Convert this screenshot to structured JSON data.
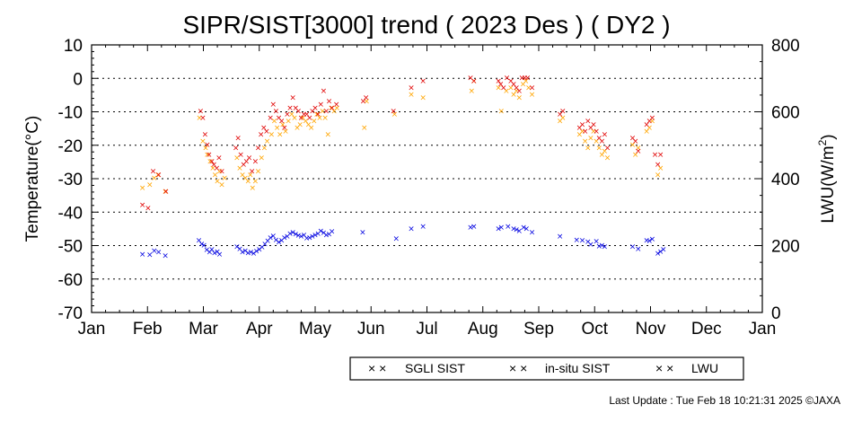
{
  "chart_data": {
    "type": "scatter",
    "title": "SIPR/SIST[3000] trend ( 2023 Des ) ( DY2 )",
    "ylabel": "Temperature(°C)",
    "y2label_base": "LWU(W/m",
    "y2label_sup": "2",
    "y2label_end": ")",
    "ylim": [
      -70,
      10
    ],
    "y2lim": [
      0,
      800
    ],
    "yticks": [
      "10",
      "0",
      "-10",
      "-20",
      "-30",
      "-40",
      "-50",
      "-60",
      "-70"
    ],
    "y2ticks": [
      "800",
      "600",
      "400",
      "200",
      "0"
    ],
    "xticks": [
      "Jan",
      "Feb",
      "Mar",
      "Apr",
      "May",
      "Jun",
      "Jul",
      "Aug",
      "Sep",
      "Oct",
      "Nov",
      "Dec",
      "Jan"
    ],
    "grid": "horizontal-dotted",
    "legend_placement": "bottom-right",
    "x_unit": "month-position (0 = Jan 1, 12 = next Jan 1)",
    "series": [
      {
        "name": "SGLI SIST",
        "axis": "left",
        "color": "#ffa500",
        "marker": "×",
        "points": [
          [
            0.91,
            -33
          ],
          [
            1.04,
            -32
          ],
          [
            1.12,
            -30
          ],
          [
            1.19,
            -29
          ],
          [
            1.32,
            -34
          ],
          [
            1.93,
            -12
          ],
          [
            1.99,
            -19
          ],
          [
            2.04,
            -21
          ],
          [
            2.07,
            -23
          ],
          [
            2.12,
            -25
          ],
          [
            2.17,
            -27
          ],
          [
            2.21,
            -29
          ],
          [
            2.25,
            -31
          ],
          [
            2.29,
            -28
          ],
          [
            2.33,
            -32
          ],
          [
            2.38,
            -30
          ],
          [
            2.6,
            -24
          ],
          [
            2.65,
            -27
          ],
          [
            2.7,
            -29
          ],
          [
            2.75,
            -30
          ],
          [
            2.8,
            -31
          ],
          [
            2.84,
            -29
          ],
          [
            2.88,
            -33
          ],
          [
            2.93,
            -31
          ],
          [
            2.98,
            -28
          ],
          [
            3.04,
            -24
          ],
          [
            3.09,
            -21
          ],
          [
            3.14,
            -19
          ],
          [
            3.22,
            -17
          ],
          [
            3.27,
            -13
          ],
          [
            3.32,
            -15
          ],
          [
            3.37,
            -17
          ],
          [
            3.42,
            -14
          ],
          [
            3.47,
            -16
          ],
          [
            3.52,
            -13
          ],
          [
            3.58,
            -11
          ],
          [
            3.63,
            -12
          ],
          [
            3.68,
            -15
          ],
          [
            3.73,
            -14
          ],
          [
            3.78,
            -12
          ],
          [
            3.83,
            -13
          ],
          [
            3.88,
            -14
          ],
          [
            3.93,
            -15
          ],
          [
            3.98,
            -13
          ],
          [
            4.03,
            -11
          ],
          [
            4.08,
            -12
          ],
          [
            4.13,
            -10
          ],
          [
            4.18,
            -12
          ],
          [
            4.23,
            -17
          ],
          [
            4.29,
            -9
          ],
          [
            4.34,
            -10
          ],
          [
            4.39,
            -9
          ],
          [
            4.88,
            -15
          ],
          [
            4.92,
            -7
          ],
          [
            5.42,
            -11
          ],
          [
            5.72,
            -5
          ],
          [
            5.93,
            -6
          ],
          [
            6.8,
            -4
          ],
          [
            6.84,
            -1
          ],
          [
            7.28,
            -3
          ],
          [
            7.33,
            -10
          ],
          [
            7.42,
            -4
          ],
          [
            7.5,
            -3
          ],
          [
            7.55,
            -5
          ],
          [
            7.6,
            -4
          ],
          [
            7.65,
            -6
          ],
          [
            7.72,
            -2
          ],
          [
            7.77,
            -1
          ],
          [
            7.82,
            -3
          ],
          [
            7.88,
            -5
          ],
          [
            8.38,
            -13
          ],
          [
            8.43,
            -12
          ],
          [
            8.73,
            -17
          ],
          [
            8.78,
            -16
          ],
          [
            8.83,
            -19
          ],
          [
            8.88,
            -21
          ],
          [
            8.93,
            -18
          ],
          [
            8.98,
            -16
          ],
          [
            9.03,
            -19
          ],
          [
            9.08,
            -21
          ],
          [
            9.13,
            -23
          ],
          [
            9.18,
            -22
          ],
          [
            9.23,
            -24
          ],
          [
            9.68,
            -20
          ],
          [
            9.73,
            -23
          ],
          [
            9.78,
            -21
          ],
          [
            9.93,
            -16
          ],
          [
            9.98,
            -15
          ],
          [
            10.03,
            -13
          ],
          [
            10.13,
            -29
          ],
          [
            10.18,
            -27
          ]
        ]
      },
      {
        "name": "in-situ SIST",
        "axis": "left",
        "color": "#e00000",
        "marker": "×",
        "points": [
          [
            0.91,
            -38
          ],
          [
            1.01,
            -39
          ],
          [
            1.1,
            -28
          ],
          [
            1.2,
            -29
          ],
          [
            1.33,
            -34
          ],
          [
            1.95,
            -10
          ],
          [
            1.99,
            -12
          ],
          [
            2.03,
            -17
          ],
          [
            2.07,
            -20
          ],
          [
            2.1,
            -23
          ],
          [
            2.15,
            -25
          ],
          [
            2.19,
            -26
          ],
          [
            2.24,
            -27
          ],
          [
            2.28,
            -24
          ],
          [
            2.33,
            -28
          ],
          [
            2.58,
            -21
          ],
          [
            2.62,
            -18
          ],
          [
            2.67,
            -23
          ],
          [
            2.72,
            -26
          ],
          [
            2.77,
            -25
          ],
          [
            2.82,
            -24
          ],
          [
            2.87,
            -28
          ],
          [
            2.93,
            -25
          ],
          [
            2.98,
            -21
          ],
          [
            3.03,
            -17
          ],
          [
            3.08,
            -15
          ],
          [
            3.13,
            -16
          ],
          [
            3.2,
            -12
          ],
          [
            3.25,
            -8
          ],
          [
            3.3,
            -10
          ],
          [
            3.35,
            -12
          ],
          [
            3.4,
            -13
          ],
          [
            3.45,
            -15
          ],
          [
            3.5,
            -11
          ],
          [
            3.55,
            -9
          ],
          [
            3.6,
            -6
          ],
          [
            3.65,
            -9
          ],
          [
            3.7,
            -10
          ],
          [
            3.75,
            -12
          ],
          [
            3.8,
            -11
          ],
          [
            3.85,
            -11
          ],
          [
            3.9,
            -12
          ],
          [
            3.95,
            -10
          ],
          [
            4.0,
            -9
          ],
          [
            4.05,
            -11
          ],
          [
            4.1,
            -8
          ],
          [
            4.15,
            -4
          ],
          [
            4.2,
            -10
          ],
          [
            4.25,
            -7
          ],
          [
            4.3,
            -9
          ],
          [
            4.38,
            -8
          ],
          [
            4.86,
            -7
          ],
          [
            4.91,
            -6
          ],
          [
            5.4,
            -10
          ],
          [
            5.72,
            -3
          ],
          [
            5.93,
            -1
          ],
          [
            6.78,
            0
          ],
          [
            6.84,
            -1
          ],
          [
            7.28,
            -1
          ],
          [
            7.32,
            -2
          ],
          [
            7.37,
            -3
          ],
          [
            7.43,
            0
          ],
          [
            7.5,
            -1
          ],
          [
            7.55,
            -2
          ],
          [
            7.6,
            -3
          ],
          [
            7.65,
            -4
          ],
          [
            7.7,
            0
          ],
          [
            7.75,
            0
          ],
          [
            7.8,
            0
          ],
          [
            7.88,
            -3
          ],
          [
            8.38,
            -11
          ],
          [
            8.43,
            -10
          ],
          [
            8.73,
            -15
          ],
          [
            8.78,
            -14
          ],
          [
            8.83,
            -16
          ],
          [
            8.88,
            -13
          ],
          [
            8.93,
            -15
          ],
          [
            8.98,
            -14
          ],
          [
            9.03,
            -16
          ],
          [
            9.08,
            -18
          ],
          [
            9.13,
            -19
          ],
          [
            9.18,
            -17
          ],
          [
            9.23,
            -21
          ],
          [
            9.68,
            -18
          ],
          [
            9.73,
            -19
          ],
          [
            9.78,
            -22
          ],
          [
            9.93,
            -14
          ],
          [
            9.98,
            -13
          ],
          [
            10.03,
            -12
          ],
          [
            10.08,
            -23
          ],
          [
            10.13,
            -26
          ],
          [
            10.18,
            -23
          ]
        ]
      },
      {
        "name": "LWU",
        "axis": "right",
        "color": "#0000e0",
        "marker": "×",
        "points": [
          [
            0.91,
            172
          ],
          [
            1.04,
            170
          ],
          [
            1.12,
            183
          ],
          [
            1.2,
            178
          ],
          [
            1.32,
            168
          ],
          [
            1.92,
            213
          ],
          [
            1.97,
            203
          ],
          [
            2.01,
            198
          ],
          [
            2.06,
            185
          ],
          [
            2.11,
            178
          ],
          [
            2.15,
            186
          ],
          [
            2.2,
            176
          ],
          [
            2.25,
            180
          ],
          [
            2.29,
            172
          ],
          [
            2.6,
            195
          ],
          [
            2.65,
            188
          ],
          [
            2.7,
            178
          ],
          [
            2.75,
            182
          ],
          [
            2.8,
            176
          ],
          [
            2.85,
            179
          ],
          [
            2.9,
            174
          ],
          [
            2.95,
            181
          ],
          [
            3.0,
            186
          ],
          [
            3.05,
            193
          ],
          [
            3.1,
            203
          ],
          [
            3.15,
            212
          ],
          [
            3.2,
            221
          ],
          [
            3.25,
            227
          ],
          [
            3.3,
            215
          ],
          [
            3.35,
            208
          ],
          [
            3.4,
            213
          ],
          [
            3.45,
            221
          ],
          [
            3.5,
            226
          ],
          [
            3.55,
            233
          ],
          [
            3.6,
            238
          ],
          [
            3.65,
            232
          ],
          [
            3.7,
            228
          ],
          [
            3.75,
            226
          ],
          [
            3.8,
            230
          ],
          [
            3.85,
            220
          ],
          [
            3.9,
            222
          ],
          [
            3.95,
            225
          ],
          [
            4.0,
            230
          ],
          [
            4.05,
            234
          ],
          [
            4.1,
            241
          ],
          [
            4.15,
            236
          ],
          [
            4.2,
            229
          ],
          [
            4.25,
            232
          ],
          [
            4.3,
            240
          ],
          [
            4.85,
            238
          ],
          [
            5.45,
            219
          ],
          [
            5.72,
            248
          ],
          [
            5.93,
            255
          ],
          [
            6.78,
            252
          ],
          [
            6.84,
            255
          ],
          [
            7.28,
            248
          ],
          [
            7.33,
            252
          ],
          [
            7.45,
            255
          ],
          [
            7.55,
            248
          ],
          [
            7.6,
            245
          ],
          [
            7.65,
            242
          ],
          [
            7.73,
            252
          ],
          [
            7.78,
            248
          ],
          [
            7.88,
            238
          ],
          [
            8.38,
            225
          ],
          [
            8.68,
            215
          ],
          [
            8.78,
            213
          ],
          [
            8.88,
            209
          ],
          [
            8.93,
            202
          ],
          [
            9.03,
            211
          ],
          [
            9.08,
            196
          ],
          [
            9.13,
            199
          ],
          [
            9.18,
            194
          ],
          [
            9.68,
            195
          ],
          [
            9.78,
            188
          ],
          [
            9.93,
            213
          ],
          [
            9.98,
            212
          ],
          [
            10.03,
            218
          ],
          [
            10.13,
            175
          ],
          [
            10.18,
            180
          ],
          [
            10.23,
            186
          ]
        ]
      }
    ]
  },
  "legend": {
    "items": [
      {
        "label": "SGLI SIST",
        "color": "#ffa500"
      },
      {
        "label": "in-situ SIST",
        "color": "#e00000"
      },
      {
        "label": "LWU",
        "color": "#0000e0"
      }
    ],
    "marker_glyph": "× ×"
  },
  "footer": {
    "text": "Last Update : Tue Feb 18 10:21:31 2025  ©JAXA"
  }
}
